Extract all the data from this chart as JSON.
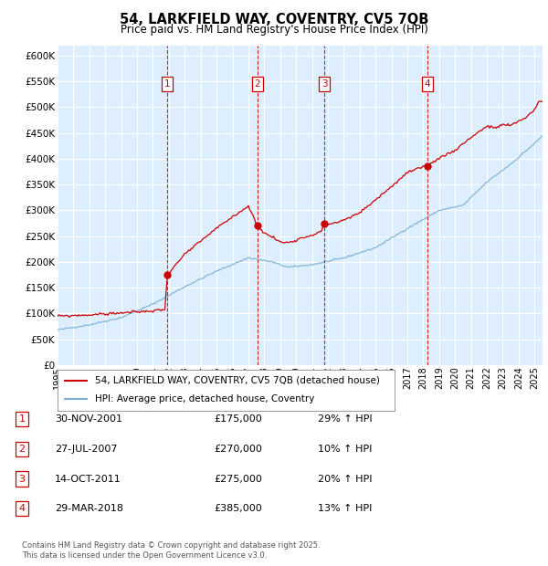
{
  "title": "54, LARKFIELD WAY, COVENTRY, CV5 7QB",
  "subtitle": "Price paid vs. HM Land Registry's House Price Index (HPI)",
  "ylim": [
    0,
    620000
  ],
  "yticks": [
    0,
    50000,
    100000,
    150000,
    200000,
    250000,
    300000,
    350000,
    400000,
    450000,
    500000,
    550000,
    600000
  ],
  "xlim_start": 1995.0,
  "xlim_end": 2025.5,
  "plot_bg_color": "#ddeeff",
  "fig_bg_color": "#ffffff",
  "grid_color": "#ffffff",
  "red_line_color": "#cc0000",
  "blue_line_color": "#7ab0d4",
  "sale_markers": [
    {
      "date_dec": 2001.91,
      "price": 175000,
      "label": "1"
    },
    {
      "date_dec": 2007.57,
      "price": 270000,
      "label": "2"
    },
    {
      "date_dec": 2011.79,
      "price": 275000,
      "label": "3"
    },
    {
      "date_dec": 2018.24,
      "price": 385000,
      "label": "4"
    }
  ],
  "footer": "Contains HM Land Registry data © Crown copyright and database right 2025.\nThis data is licensed under the Open Government Licence v3.0.",
  "legend_line1": "54, LARKFIELD WAY, COVENTRY, CV5 7QB (detached house)",
  "legend_line2": "HPI: Average price, detached house, Coventry",
  "table_rows": [
    {
      "num": "1",
      "date": "30-NOV-2001",
      "price": "£175,000",
      "pct": "29% ↑ HPI"
    },
    {
      "num": "2",
      "date": "27-JUL-2007",
      "price": "£270,000",
      "pct": "10% ↑ HPI"
    },
    {
      "num": "3",
      "date": "14-OCT-2011",
      "price": "£275,000",
      "pct": "20% ↑ HPI"
    },
    {
      "num": "4",
      "date": "29-MAR-2018",
      "price": "£385,000",
      "pct": "13% ↑ HPI"
    }
  ]
}
